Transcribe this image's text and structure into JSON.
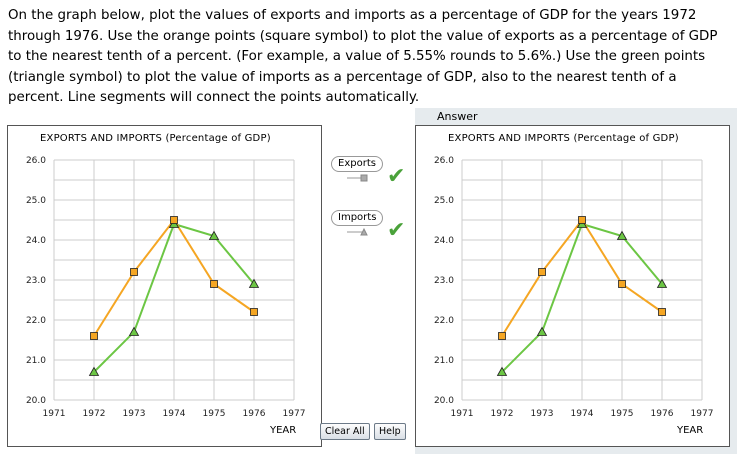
{
  "instructions": "On the graph below, plot the values of exports and imports as a percentage of GDP for the years 1972 through 1976. Use the orange points (square symbol) to plot the value of exports as a percentage of GDP to the nearest tenth of a percent. (For example, a value of 5.55% rounds to 5.6%.) Use the green points (triangle symbol) to plot the value of imports as a percentage of GDP, also to the nearest tenth of a percent. Line segments will connect the points automatically.",
  "answer_label": "Answer",
  "legend": {
    "exports_label": "Exports",
    "imports_label": "Imports",
    "check_symbol": "✔"
  },
  "buttons": {
    "clear_all": "Clear All",
    "help": "Help"
  },
  "colors": {
    "exports": "#f5a623",
    "imports": "#6cc644",
    "check": "#4aa23a",
    "grid": "#cccccc"
  },
  "chart_data": [
    {
      "type": "line",
      "title": "EXPORTS AND IMPORTS (Percentage of GDP)",
      "xlabel": "YEAR",
      "ylabel": "",
      "x": [
        1972,
        1973,
        1974,
        1975,
        1976
      ],
      "xlim": [
        1971,
        1977
      ],
      "ylim": [
        20.0,
        26.0
      ],
      "x_ticks": [
        "1971",
        "1972",
        "1973",
        "1974",
        "1975",
        "1976",
        "1977"
      ],
      "y_ticks": [
        "20.0",
        "21.0",
        "22.0",
        "23.0",
        "24.0",
        "25.0",
        "26.0"
      ],
      "series": [
        {
          "name": "Exports",
          "marker": "square",
          "color": "#f5a623",
          "values": [
            21.6,
            23.2,
            24.5,
            22.9,
            22.2
          ]
        },
        {
          "name": "Imports",
          "marker": "triangle",
          "color": "#6cc644",
          "values": [
            20.7,
            21.7,
            24.4,
            24.1,
            22.9
          ]
        }
      ]
    },
    {
      "type": "line",
      "title": "EXPORTS AND IMPORTS (Percentage of GDP)",
      "xlabel": "YEAR",
      "ylabel": "",
      "x": [
        1972,
        1973,
        1974,
        1975,
        1976
      ],
      "xlim": [
        1971,
        1977
      ],
      "ylim": [
        20.0,
        26.0
      ],
      "x_ticks": [
        "1971",
        "1972",
        "1973",
        "1974",
        "1975",
        "1976",
        "1977"
      ],
      "y_ticks": [
        "20.0",
        "21.0",
        "22.0",
        "23.0",
        "24.0",
        "25.0",
        "26.0"
      ],
      "series": [
        {
          "name": "Exports",
          "marker": "square",
          "color": "#f5a623",
          "values": [
            21.6,
            23.2,
            24.5,
            22.9,
            22.2
          ]
        },
        {
          "name": "Imports",
          "marker": "triangle",
          "color": "#6cc644",
          "values": [
            20.7,
            21.7,
            24.4,
            24.1,
            22.9
          ]
        }
      ]
    }
  ]
}
